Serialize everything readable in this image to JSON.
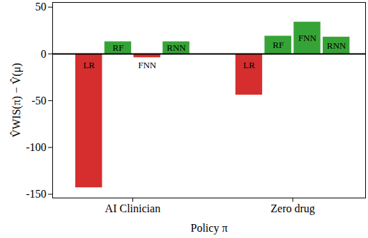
{
  "chart_data": {
    "type": "bar",
    "x_label": "Policy π",
    "y_label": "V̂WIS(π) − V̂(μ)",
    "categories": [
      "AI Clinician",
      "Zero drug"
    ],
    "series": [
      {
        "name": "LR",
        "values": [
          -143,
          -44
        ],
        "colors": [
          "#d62e2e",
          "#d62e2e"
        ]
      },
      {
        "name": "RF",
        "values": [
          13,
          19
        ],
        "colors": [
          "#36a336",
          "#36a336"
        ]
      },
      {
        "name": "FNN",
        "values": [
          -4,
          34
        ],
        "colors": [
          "#d62e2e",
          "#36a336"
        ]
      },
      {
        "name": "RNN",
        "values": [
          13,
          18
        ],
        "colors": [
          "#36a336",
          "#36a336"
        ]
      }
    ],
    "ylim": [
      -154,
      55
    ],
    "yticks": [
      -150,
      -100,
      -50,
      0,
      50
    ],
    "grid": false
  }
}
